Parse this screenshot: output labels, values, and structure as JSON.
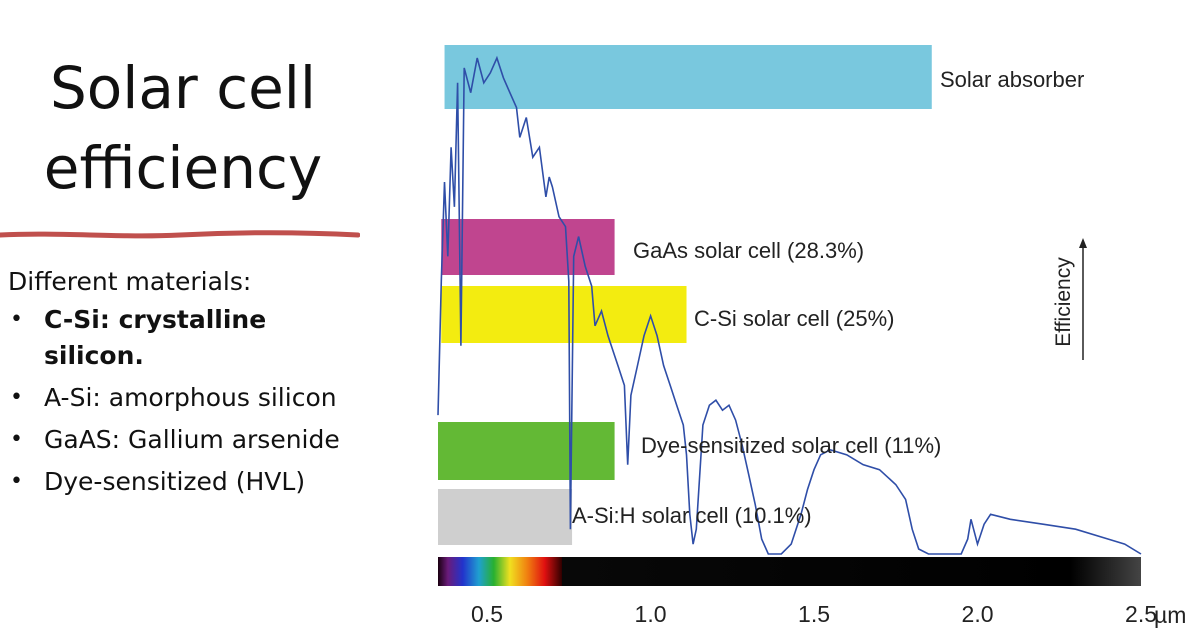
{
  "slide": {
    "title_line1": "Solar cell",
    "title_line2": "efficiency",
    "intro": "Different materials:",
    "bullets": [
      {
        "text": "C-Si: crystalline silicon.",
        "bold": true
      },
      {
        "text": "A-Si: amorphous silicon",
        "bold": false
      },
      {
        "text": "GaAS: Gallium arsenide",
        "bold": false
      },
      {
        "text": "Dye-sensitized (HVL)",
        "bold": false
      }
    ],
    "bullet_glyph": "•",
    "accent_color": "#c0504d"
  },
  "chart_data": {
    "type": "bar",
    "orientation": "horizontal",
    "xlabel_unit": "µm",
    "xlim": [
      0.35,
      2.5
    ],
    "xticks": [
      "0.5",
      "1.0",
      "1.5",
      "2.0",
      "2.5"
    ],
    "xtick_values": [
      0.5,
      1.0,
      1.5,
      2.0,
      2.5
    ],
    "efficiency_label": "Efficiency",
    "bars": [
      {
        "label": "Solar absorber",
        "start": 0.37,
        "end": 1.86,
        "color": "#79c8de"
      },
      {
        "label": "GaAs solar cell (28.3%)",
        "start": 0.36,
        "end": 0.89,
        "color": "#c0458f"
      },
      {
        "label": "C-Si solar cell (25%)",
        "start": 0.36,
        "end": 1.11,
        "color": "#f3ec10"
      },
      {
        "label": "Dye-sensitized solar cell (11%)",
        "start": 0.35,
        "end": 0.89,
        "color": "#63b935"
      },
      {
        "label": "A-Si:H solar cell (10.1%)",
        "start": 0.35,
        "end": 0.76,
        "color": "#cfcfcf"
      }
    ],
    "spectrum_line_color": "#2f4ea8",
    "spectrum": [
      [
        0.35,
        0.28
      ],
      [
        0.36,
        0.55
      ],
      [
        0.37,
        0.75
      ],
      [
        0.38,
        0.6
      ],
      [
        0.39,
        0.82
      ],
      [
        0.4,
        0.7
      ],
      [
        0.41,
        0.95
      ],
      [
        0.42,
        0.42
      ],
      [
        0.43,
        0.98
      ],
      [
        0.45,
        0.93
      ],
      [
        0.47,
        1.0
      ],
      [
        0.49,
        0.95
      ],
      [
        0.51,
        0.97
      ],
      [
        0.53,
        1.0
      ],
      [
        0.55,
        0.96
      ],
      [
        0.57,
        0.93
      ],
      [
        0.59,
        0.9
      ],
      [
        0.6,
        0.84
      ],
      [
        0.62,
        0.88
      ],
      [
        0.64,
        0.8
      ],
      [
        0.66,
        0.82
      ],
      [
        0.68,
        0.72
      ],
      [
        0.69,
        0.76
      ],
      [
        0.7,
        0.74
      ],
      [
        0.72,
        0.68
      ],
      [
        0.74,
        0.66
      ],
      [
        0.75,
        0.55
      ],
      [
        0.755,
        0.05
      ],
      [
        0.765,
        0.6
      ],
      [
        0.78,
        0.64
      ],
      [
        0.8,
        0.58
      ],
      [
        0.82,
        0.54
      ],
      [
        0.83,
        0.46
      ],
      [
        0.85,
        0.49
      ],
      [
        0.87,
        0.44
      ],
      [
        0.89,
        0.4
      ],
      [
        0.9,
        0.38
      ],
      [
        0.92,
        0.34
      ],
      [
        0.93,
        0.18
      ],
      [
        0.94,
        0.32
      ],
      [
        0.96,
        0.38
      ],
      [
        0.98,
        0.44
      ],
      [
        1.0,
        0.48
      ],
      [
        1.02,
        0.44
      ],
      [
        1.04,
        0.38
      ],
      [
        1.06,
        0.34
      ],
      [
        1.08,
        0.3
      ],
      [
        1.1,
        0.26
      ],
      [
        1.11,
        0.2
      ],
      [
        1.12,
        0.08
      ],
      [
        1.13,
        0.02
      ],
      [
        1.14,
        0.05
      ],
      [
        1.16,
        0.26
      ],
      [
        1.18,
        0.3
      ],
      [
        1.2,
        0.31
      ],
      [
        1.22,
        0.29
      ],
      [
        1.24,
        0.3
      ],
      [
        1.26,
        0.27
      ],
      [
        1.28,
        0.22
      ],
      [
        1.3,
        0.16
      ],
      [
        1.32,
        0.1
      ],
      [
        1.34,
        0.03
      ],
      [
        1.36,
        0.0
      ],
      [
        1.4,
        0.0
      ],
      [
        1.43,
        0.02
      ],
      [
        1.46,
        0.08
      ],
      [
        1.48,
        0.13
      ],
      [
        1.5,
        0.17
      ],
      [
        1.52,
        0.2
      ],
      [
        1.55,
        0.21
      ],
      [
        1.6,
        0.2
      ],
      [
        1.65,
        0.18
      ],
      [
        1.7,
        0.17
      ],
      [
        1.75,
        0.14
      ],
      [
        1.78,
        0.11
      ],
      [
        1.8,
        0.05
      ],
      [
        1.82,
        0.01
      ],
      [
        1.85,
        0.0
      ],
      [
        1.9,
        0.0
      ],
      [
        1.95,
        0.0
      ],
      [
        1.97,
        0.03
      ],
      [
        1.98,
        0.07
      ],
      [
        2.0,
        0.02
      ],
      [
        2.02,
        0.06
      ],
      [
        2.04,
        0.08
      ],
      [
        2.1,
        0.07
      ],
      [
        2.2,
        0.06
      ],
      [
        2.3,
        0.05
      ],
      [
        2.4,
        0.03
      ],
      [
        2.45,
        0.02
      ],
      [
        2.5,
        0.0
      ]
    ]
  }
}
